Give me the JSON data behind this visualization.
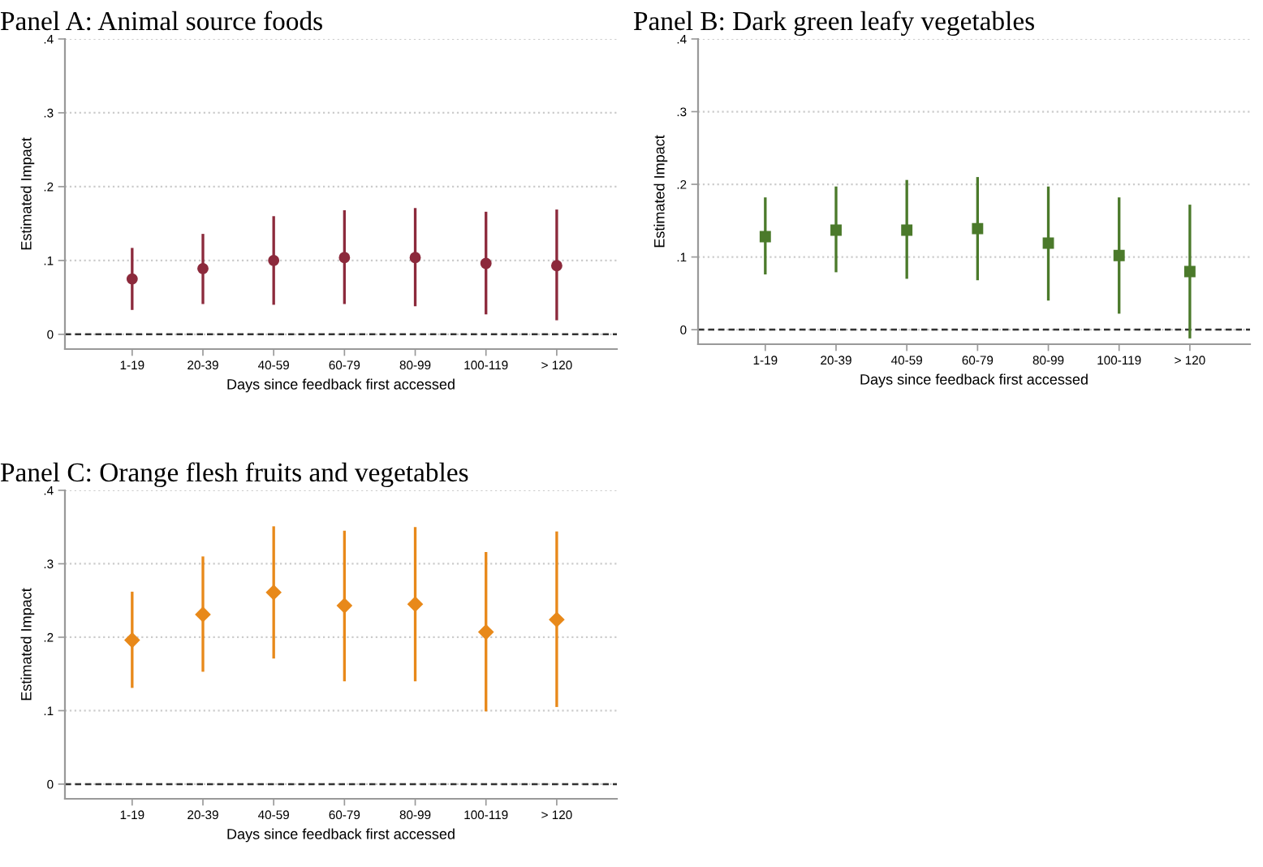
{
  "chart_data": [
    {
      "type": "scatter",
      "title": "Panel A: Animal source foods",
      "xlabel": "Days since feedback first accessed",
      "ylabel": "Estimated Impact",
      "categories": [
        "1-19",
        "20-39",
        "40-59",
        "60-79",
        "80-99",
        "100-119",
        "> 120"
      ],
      "series": [
        {
          "color": "#8c2a3c",
          "values": [
            0.075,
            0.089,
            0.1,
            0.104,
            0.104,
            0.096,
            0.093
          ],
          "errors": [
            [
              0.033,
              0.117
            ],
            [
              0.041,
              0.136
            ],
            [
              0.04,
              0.16
            ],
            [
              0.041,
              0.168
            ],
            [
              0.038,
              0.171
            ],
            [
              0.027,
              0.166
            ],
            [
              0.019,
              0.169
            ]
          ]
        }
      ],
      "marker": "circle",
      "ylim": [
        -0.02,
        0.4
      ],
      "yticks": [
        0,
        {
          "value": 0.1,
          "label": ".1"
        },
        {
          "value": 0.2,
          "label": ".2"
        },
        {
          "value": 0.3,
          "label": ".3"
        },
        {
          "value": 0.4,
          "label": ".4"
        }
      ],
      "grid": "y",
      "ref_lines": [
        {
          "axis": "y",
          "value": 0,
          "color": "#333333",
          "line_style": "dashed"
        }
      ]
    },
    {
      "type": "scatter",
      "title": "Panel B: Dark green leafy vegetables",
      "xlabel": "Days since feedback first accessed",
      "ylabel": "Estimated Impact",
      "categories": [
        "1-19",
        "20-39",
        "40-59",
        "60-79",
        "80-99",
        "100-119",
        "> 120"
      ],
      "series": [
        {
          "color": "#4b7a2b",
          "values": [
            0.128,
            0.137,
            0.137,
            0.139,
            0.119,
            0.102,
            0.08
          ],
          "errors": [
            [
              0.076,
              0.182
            ],
            [
              0.079,
              0.197
            ],
            [
              0.07,
              0.206
            ],
            [
              0.068,
              0.21
            ],
            [
              0.04,
              0.197
            ],
            [
              0.022,
              0.182
            ],
            [
              -0.012,
              0.172
            ]
          ]
        }
      ],
      "marker": "square",
      "ylim": [
        -0.02,
        0.4
      ],
      "yticks": [
        0,
        {
          "value": 0.1,
          "label": ".1"
        },
        {
          "value": 0.2,
          "label": ".2"
        },
        {
          "value": 0.3,
          "label": ".3"
        },
        {
          "value": 0.4,
          "label": ".4"
        }
      ],
      "grid": "y",
      "ref_lines": [
        {
          "axis": "y",
          "value": 0,
          "color": "#333333",
          "line_style": "dashed"
        }
      ]
    },
    {
      "type": "scatter",
      "title": "Panel C: Orange flesh fruits and vegetables",
      "xlabel": "Days since feedback first accessed",
      "ylabel": "Estimated Impact",
      "categories": [
        "1-19",
        "20-39",
        "40-59",
        "60-79",
        "80-99",
        "100-119",
        "> 120"
      ],
      "series": [
        {
          "color": "#e8891a",
          "values": [
            0.196,
            0.231,
            0.261,
            0.243,
            0.245,
            0.207,
            0.224
          ],
          "errors": [
            [
              0.131,
              0.262
            ],
            [
              0.153,
              0.31
            ],
            [
              0.171,
              0.351
            ],
            [
              0.14,
              0.345
            ],
            [
              0.14,
              0.35
            ],
            [
              0.099,
              0.316
            ],
            [
              0.105,
              0.344
            ]
          ]
        }
      ],
      "marker": "diamond",
      "ylim": [
        -0.02,
        0.4
      ],
      "yticks": [
        0,
        {
          "value": 0.1,
          "label": ".1"
        },
        {
          "value": 0.2,
          "label": ".2"
        },
        {
          "value": 0.3,
          "label": ".3"
        },
        {
          "value": 0.4,
          "label": ".4"
        }
      ],
      "grid": "y",
      "ref_lines": [
        {
          "axis": "y",
          "value": 0,
          "color": "#333333",
          "line_style": "dashed"
        }
      ]
    }
  ]
}
